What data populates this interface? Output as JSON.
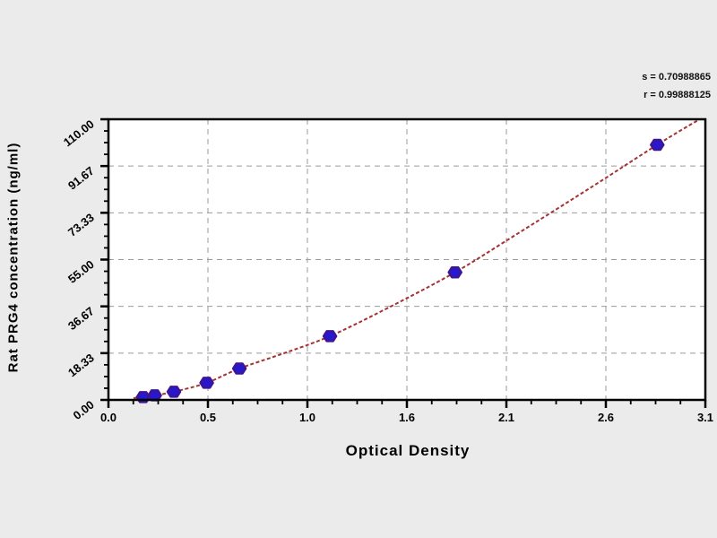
{
  "page": {
    "background": "#ebebeb"
  },
  "stats": {
    "s_line": "s = 0.70988865",
    "r_line": "r = 0.99888125"
  },
  "chart_data": {
    "type": "scatter",
    "title": "",
    "xlabel": "Optical Density",
    "ylabel": "Rat  PRG4  concentration (ng/ml)",
    "xlim": [
      0,
      3.1
    ],
    "ylim": [
      0,
      110
    ],
    "grid": true,
    "legend": "none",
    "x_ticks": [
      0,
      0.5167,
      1.0333,
      1.55,
      2.0667,
      2.5833,
      3.1
    ],
    "x_tick_labels": [
      "0.0",
      "0.5",
      "1.0",
      "1.6",
      "2.1",
      "2.6",
      "3.1"
    ],
    "y_ticks": [
      0,
      18.333,
      36.667,
      55,
      73.333,
      91.667,
      110
    ],
    "y_tick_labels": [
      "0.00",
      "18.33",
      "36.67",
      "55.00",
      "73.33",
      "91.67",
      "110.00"
    ],
    "minor_ticks_per_interval": 3,
    "points": [
      {
        "x": 0.18,
        "y": 1.1
      },
      {
        "x": 0.24,
        "y": 1.8
      },
      {
        "x": 0.34,
        "y": 3.2
      },
      {
        "x": 0.51,
        "y": 6.7
      },
      {
        "x": 0.68,
        "y": 12.3
      },
      {
        "x": 1.15,
        "y": 25.0
      },
      {
        "x": 1.8,
        "y": 50.0
      },
      {
        "x": 2.85,
        "y": 100.0
      }
    ],
    "fit_curve_points": [
      [
        0.13,
        0.7
      ],
      [
        0.18,
        1.1
      ],
      [
        0.24,
        1.8
      ],
      [
        0.34,
        3.2
      ],
      [
        0.51,
        6.7
      ],
      [
        0.68,
        12.3
      ],
      [
        0.9,
        18.0
      ],
      [
        1.15,
        25.0
      ],
      [
        1.45,
        36.0
      ],
      [
        1.8,
        50.0
      ],
      [
        2.1,
        64.0
      ],
      [
        2.5,
        83.0
      ],
      [
        2.85,
        100.0
      ],
      [
        3.07,
        110.0
      ]
    ],
    "colors": {
      "plot_bg": "#ffffff",
      "axis": "#000000",
      "grid": "#9b9b9b",
      "curve": "#a63232",
      "point_fill": "#2518cf",
      "point_stroke": "#3d1596",
      "text": "#000000"
    }
  }
}
